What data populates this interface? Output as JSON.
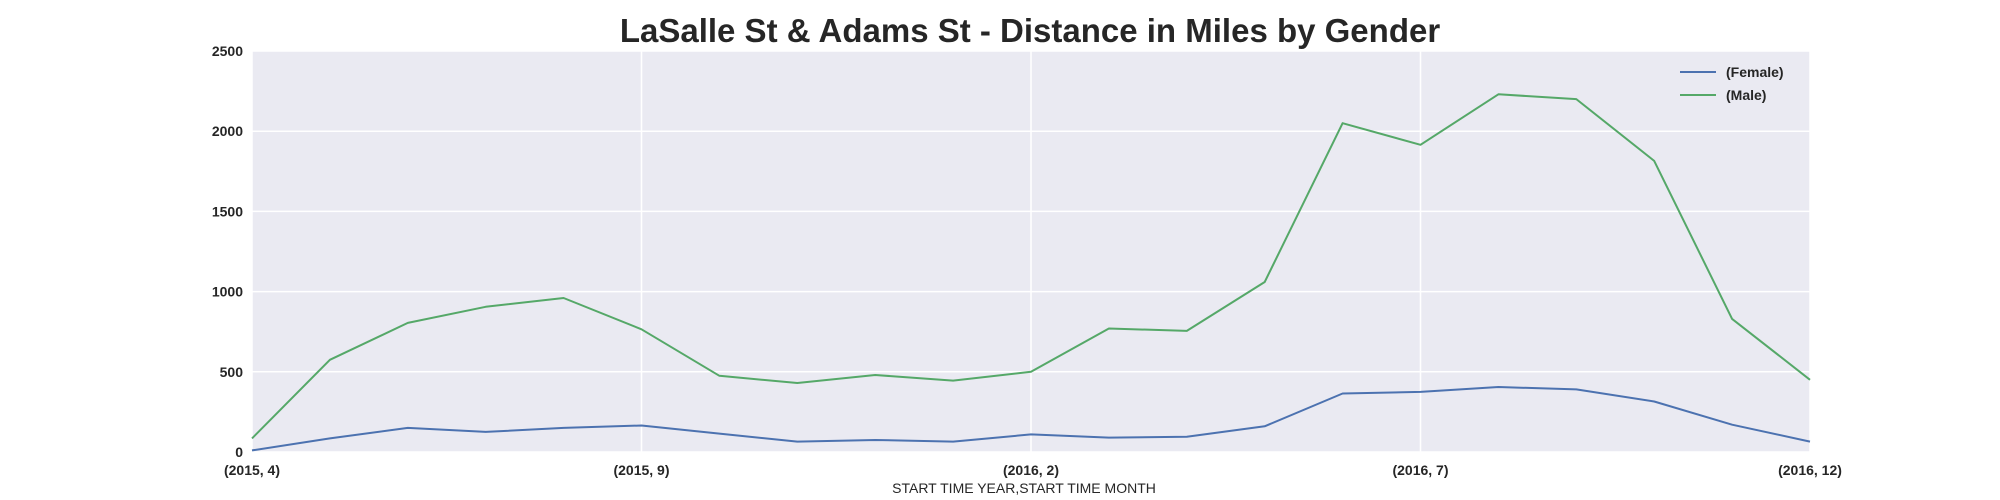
{
  "chart_data": {
    "type": "line",
    "title": "LaSalle St & Adams St - Distance in Miles by Gender",
    "xlabel": "START TIME YEAR,START TIME MONTH",
    "ylabel": "",
    "x": [
      "(2015, 4)",
      "(2015, 5)",
      "(2015, 6)",
      "(2015, 7)",
      "(2015, 8)",
      "(2015, 9)",
      "(2015, 10)",
      "(2015, 11)",
      "(2015, 12)",
      "(2016, 1)",
      "(2016, 2)",
      "(2016, 3)",
      "(2016, 4)",
      "(2016, 5)",
      "(2016, 6)",
      "(2016, 7)",
      "(2016, 8)",
      "(2016, 9)",
      "(2016, 10)",
      "(2016, 11)",
      "(2016, 12)"
    ],
    "xticks": [
      "(2015, 4)",
      "(2015, 9)",
      "(2016, 2)",
      "(2016, 7)",
      "(2016, 12)"
    ],
    "ylim": [
      0,
      2500
    ],
    "yticks": [
      0,
      500,
      1000,
      1500,
      2000,
      2500
    ],
    "grid": true,
    "legend_position": "top-right",
    "series": [
      {
        "name": "(Female)",
        "color": "#4c72b0",
        "values": [
          10,
          85,
          150,
          125,
          150,
          165,
          115,
          65,
          75,
          65,
          110,
          90,
          95,
          160,
          365,
          375,
          405,
          390,
          315,
          170,
          65
        ]
      },
      {
        "name": "(Male)",
        "color": "#55a868",
        "values": [
          85,
          575,
          805,
          905,
          960,
          765,
          475,
          430,
          480,
          445,
          500,
          770,
          755,
          1060,
          2050,
          1915,
          2230,
          2200,
          1815,
          830,
          450
        ]
      }
    ]
  }
}
